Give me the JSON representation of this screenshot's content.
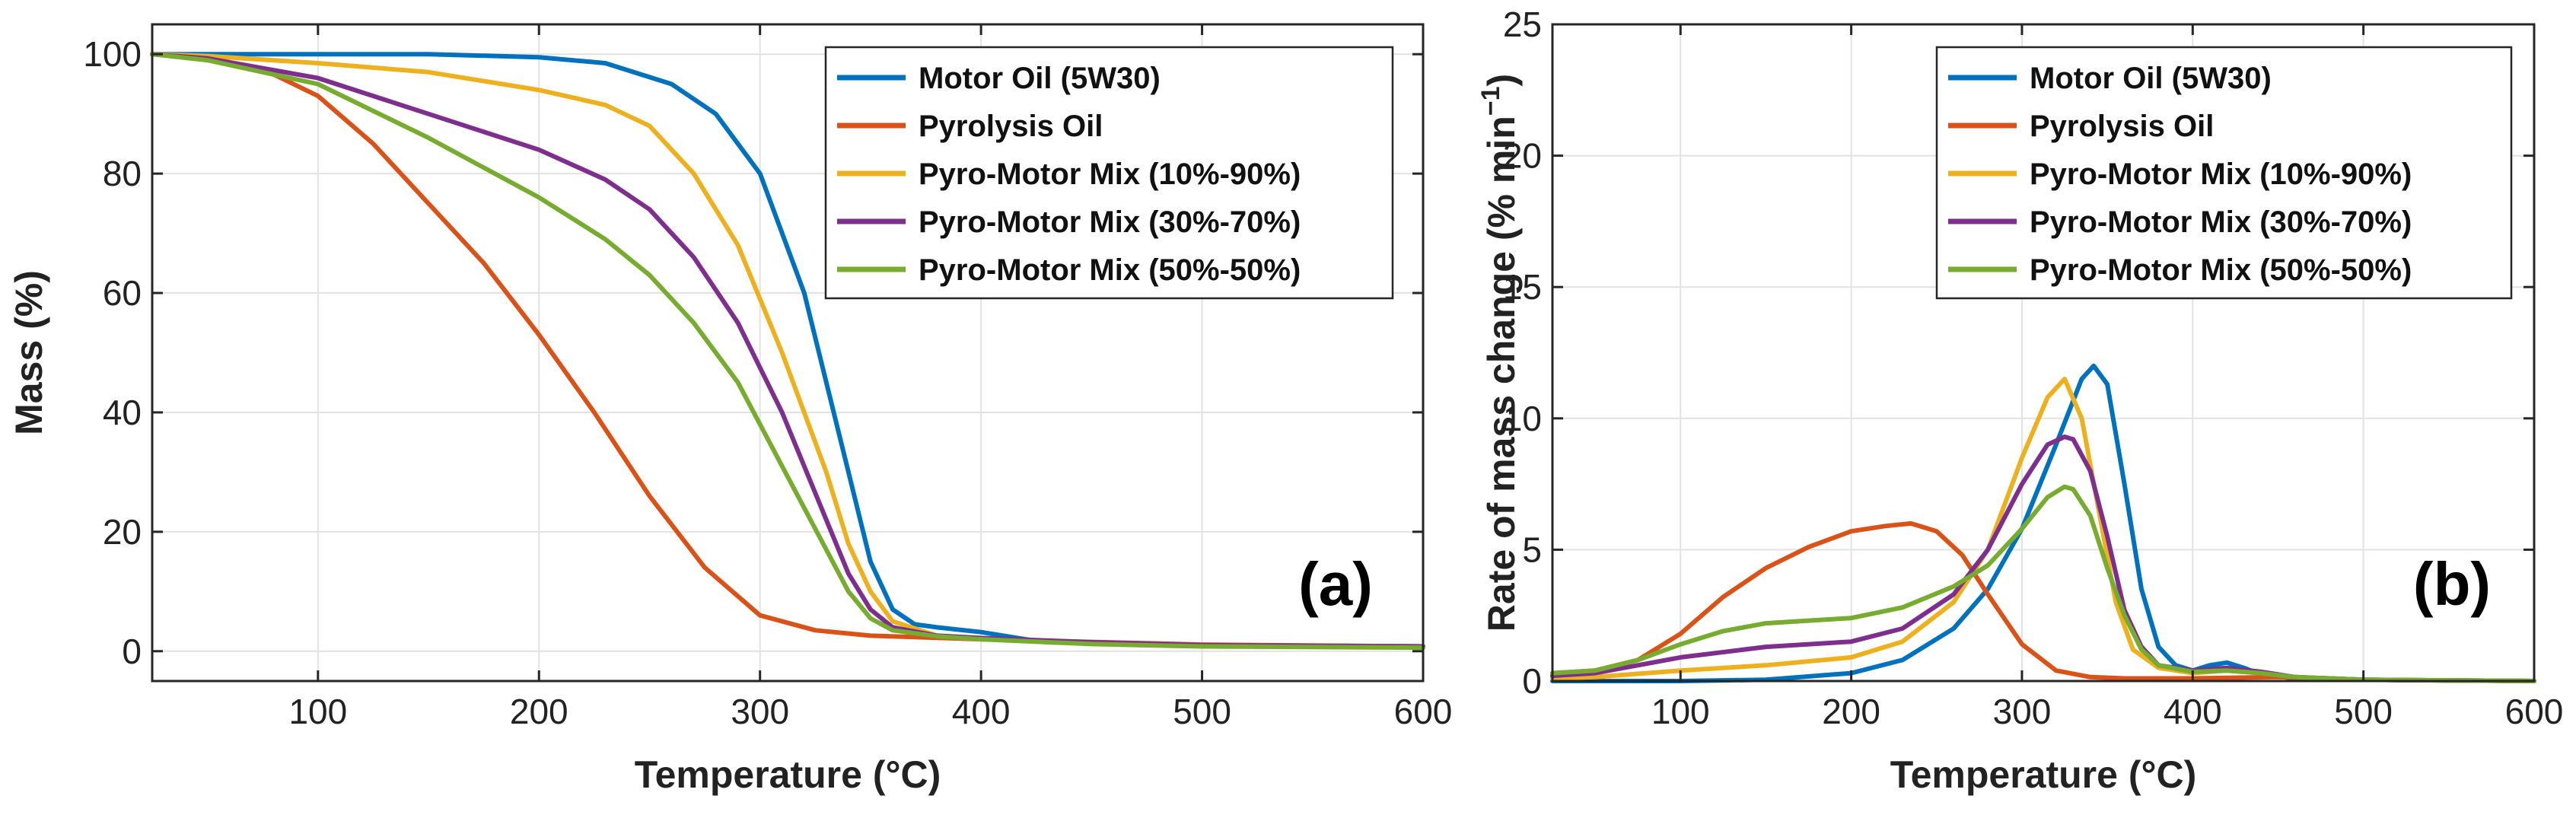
{
  "colors": {
    "motor_oil": "#0072BD",
    "pyrolysis_oil": "#D95319",
    "mix_10_90": "#EDB120",
    "mix_30_70": "#7E2F8E",
    "mix_50_50": "#77AC30"
  },
  "chart_data": [
    {
      "type": "line",
      "panel_label": "(a)",
      "xlabel": "Temperature (°C)",
      "ylabel": "Mass (%)",
      "xlim": [
        25,
        600
      ],
      "ylim": [
        -5,
        105
      ],
      "xticks": [
        100,
        200,
        300,
        400,
        500,
        600
      ],
      "yticks": [
        0,
        20,
        40,
        60,
        80,
        100
      ],
      "grid": true,
      "legend_position": "top-right",
      "series": [
        {
          "name": "Motor Oil (5W30)",
          "color_key": "motor_oil",
          "x": [
            25,
            100,
            150,
            200,
            230,
            260,
            280,
            300,
            320,
            340,
            350,
            360,
            370,
            380,
            400,
            420,
            430,
            500,
            600
          ],
          "y": [
            100,
            100,
            100,
            99.5,
            98.5,
            95,
            90,
            80,
            60,
            30,
            15,
            7,
            4.5,
            4,
            3.2,
            2,
            1.5,
            1,
            0.8
          ]
        },
        {
          "name": "Pyrolysis Oil",
          "color_key": "pyrolysis_oil",
          "x": [
            25,
            50,
            75,
            100,
            125,
            150,
            175,
            200,
            225,
            250,
            275,
            300,
            325,
            350,
            400,
            500,
            600
          ],
          "y": [
            100,
            99.3,
            97.5,
            93,
            85,
            75,
            65,
            53,
            40,
            26,
            14,
            6,
            3.5,
            2.6,
            2,
            1.1,
            0.8
          ]
        },
        {
          "name": "Pyro-Motor Mix (10%-90%)",
          "color_key": "mix_10_90",
          "x": [
            25,
            50,
            100,
            150,
            200,
            230,
            250,
            270,
            290,
            310,
            330,
            340,
            350,
            360,
            380,
            400,
            430,
            500,
            600
          ],
          "y": [
            100,
            99.7,
            98.5,
            97,
            94,
            91.5,
            88,
            80,
            68,
            50,
            30,
            18,
            10,
            5,
            2.6,
            2.2,
            1.5,
            1,
            0.8
          ]
        },
        {
          "name": "Pyro-Motor Mix (30%-70%)",
          "color_key": "mix_30_70",
          "x": [
            25,
            50,
            100,
            150,
            200,
            230,
            250,
            270,
            290,
            310,
            330,
            340,
            350,
            360,
            380,
            400,
            450,
            500,
            600
          ],
          "y": [
            100,
            99.3,
            96,
            90,
            84,
            79,
            74,
            66,
            55,
            40,
            22,
            13,
            7,
            4,
            2.6,
            2.2,
            1.5,
            1,
            0.8
          ]
        },
        {
          "name": "Pyro-Motor Mix (50%-50%)",
          "color_key": "mix_50_50",
          "x": [
            25,
            50,
            100,
            150,
            200,
            230,
            250,
            270,
            290,
            310,
            330,
            340,
            350,
            360,
            380,
            400,
            450,
            500,
            600
          ],
          "y": [
            100,
            99,
            95,
            86,
            76,
            69,
            63,
            55,
            45,
            31,
            17,
            10,
            5.5,
            3.5,
            2.5,
            2,
            1.2,
            0.8,
            0.6
          ]
        }
      ]
    },
    {
      "type": "line",
      "panel_label": "(b)",
      "xlabel": "Temperature (°C)",
      "ylabel": "Rate of mass change (% min",
      "ylabel_superscript": "−1",
      "ylabel_suffix": ")",
      "xlim": [
        25,
        600
      ],
      "ylim": [
        0,
        25
      ],
      "xticks": [
        100,
        200,
        300,
        400,
        500,
        600
      ],
      "yticks": [
        0,
        5,
        10,
        15,
        20,
        25
      ],
      "grid": true,
      "legend_position": "top-right",
      "series": [
        {
          "name": "Motor Oil (5W30)",
          "color_key": "motor_oil",
          "x": [
            25,
            100,
            150,
            200,
            230,
            260,
            280,
            300,
            320,
            335,
            342,
            350,
            360,
            370,
            380,
            390,
            400,
            410,
            420,
            430,
            440,
            460,
            500,
            600
          ],
          "y": [
            0,
            0,
            0.05,
            0.3,
            0.8,
            2,
            3.5,
            5.8,
            9,
            11.5,
            12,
            11.3,
            7.5,
            3.5,
            1.3,
            0.6,
            0.4,
            0.6,
            0.7,
            0.5,
            0.25,
            0.1,
            0.05,
            0
          ]
        },
        {
          "name": "Pyrolysis Oil",
          "color_key": "pyrolysis_oil",
          "x": [
            25,
            50,
            75,
            100,
            125,
            150,
            175,
            200,
            220,
            235,
            250,
            265,
            280,
            300,
            320,
            340,
            360,
            400,
            450,
            500,
            600
          ],
          "y": [
            0.3,
            0.4,
            0.8,
            1.8,
            3.2,
            4.3,
            5.1,
            5.7,
            5.9,
            6,
            5.7,
            4.8,
            3.3,
            1.4,
            0.4,
            0.15,
            0.1,
            0.1,
            0.15,
            0.05,
            0
          ]
        },
        {
          "name": "Pyro-Motor Mix (10%-90%)",
          "color_key": "mix_10_90",
          "x": [
            25,
            50,
            100,
            150,
            200,
            230,
            260,
            280,
            300,
            315,
            325,
            335,
            345,
            355,
            365,
            380,
            400,
            420,
            440,
            460,
            500,
            600
          ],
          "y": [
            0.1,
            0.15,
            0.4,
            0.6,
            0.9,
            1.5,
            3,
            5,
            8.5,
            10.8,
            11.5,
            10,
            6.5,
            3,
            1.2,
            0.5,
            0.3,
            0.4,
            0.3,
            0.15,
            0.05,
            0
          ]
        },
        {
          "name": "Pyro-Motor Mix (30%-70%)",
          "color_key": "mix_30_70",
          "x": [
            25,
            50,
            75,
            100,
            150,
            200,
            230,
            260,
            280,
            300,
            315,
            325,
            330,
            340,
            350,
            360,
            370,
            380,
            400,
            420,
            440,
            460,
            500,
            600
          ],
          "y": [
            0.2,
            0.3,
            0.6,
            0.9,
            1.3,
            1.5,
            2,
            3.3,
            5,
            7.5,
            9,
            9.3,
            9.2,
            8,
            5.5,
            2.7,
            1.3,
            0.6,
            0.4,
            0.5,
            0.35,
            0.15,
            0.05,
            0
          ]
        },
        {
          "name": "Pyro-Motor Mix (50%-50%)",
          "color_key": "mix_50_50",
          "x": [
            25,
            50,
            75,
            100,
            125,
            150,
            175,
            200,
            230,
            260,
            280,
            300,
            315,
            325,
            330,
            340,
            350,
            360,
            370,
            380,
            400,
            420,
            440,
            460,
            500,
            600
          ],
          "y": [
            0.3,
            0.4,
            0.8,
            1.4,
            1.9,
            2.2,
            2.3,
            2.4,
            2.8,
            3.6,
            4.4,
            5.8,
            7,
            7.4,
            7.3,
            6.3,
            4.3,
            2.5,
            1.2,
            0.6,
            0.35,
            0.4,
            0.3,
            0.15,
            0.05,
            0
          ]
        }
      ]
    }
  ]
}
